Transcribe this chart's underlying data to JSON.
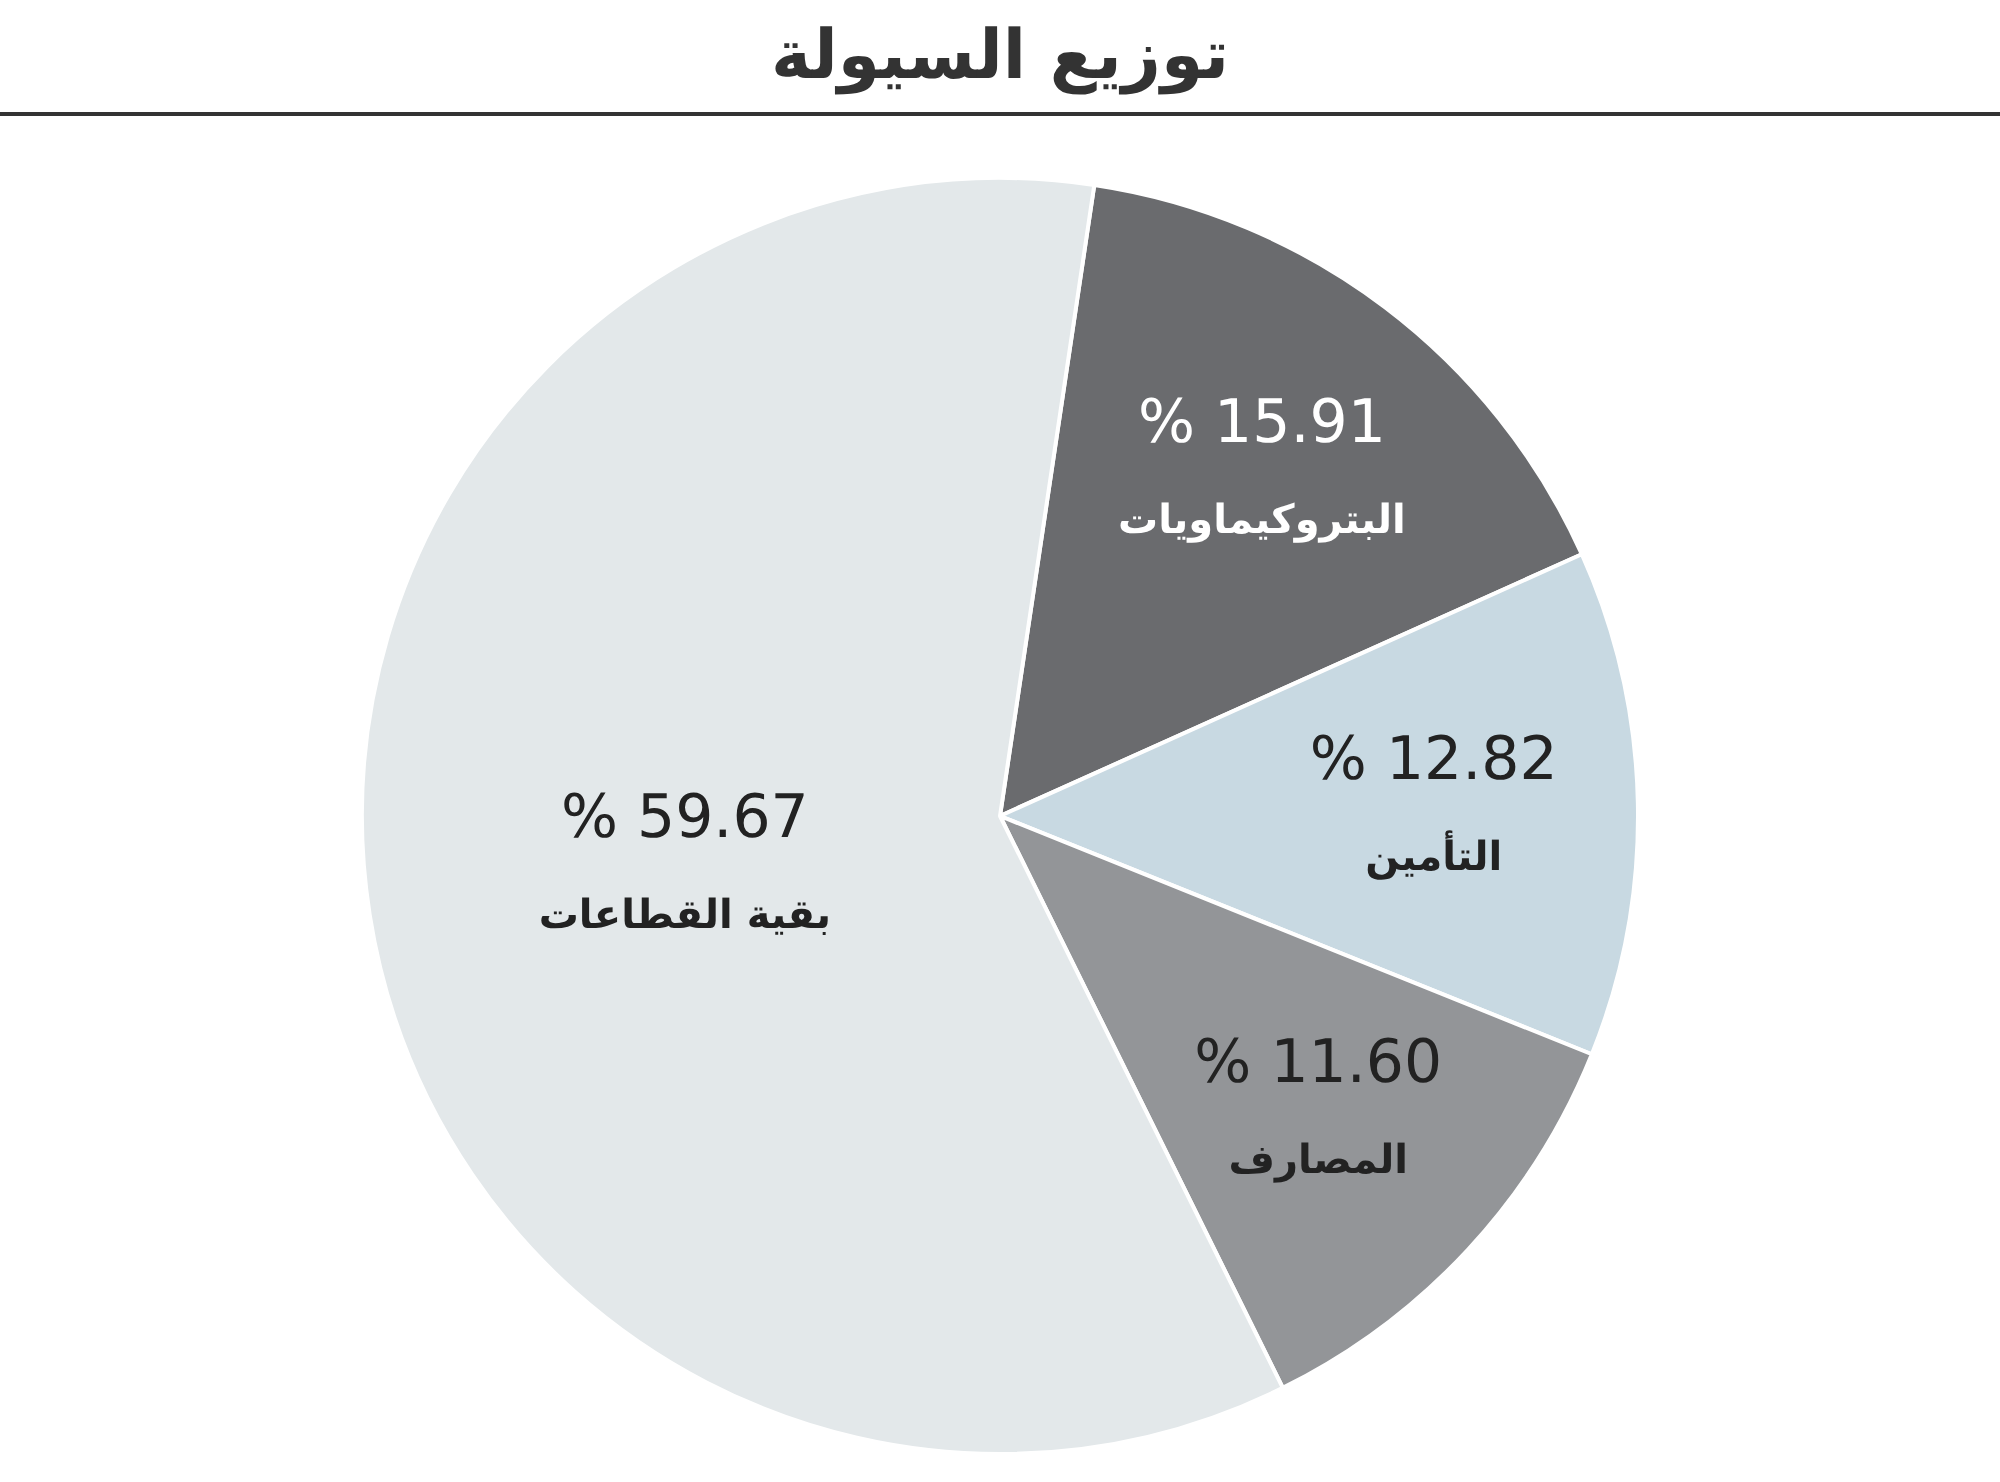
{
  "chart_data": {
    "type": "pie",
    "title": "توزيع السيولة",
    "categories": [
      "البتروكيماويات",
      "التأمين",
      "المصارف",
      "بقية القطاعات"
    ],
    "values": [
      15.91,
      12.82,
      11.6,
      59.67
    ],
    "value_labels": [
      "% 15.91",
      "% 12.82",
      "% 11.60",
      "% 59.67"
    ],
    "colors": [
      "#6a6b6e",
      "#c8d9e2",
      "#939598",
      "#e3e8ea"
    ],
    "legend": false
  }
}
